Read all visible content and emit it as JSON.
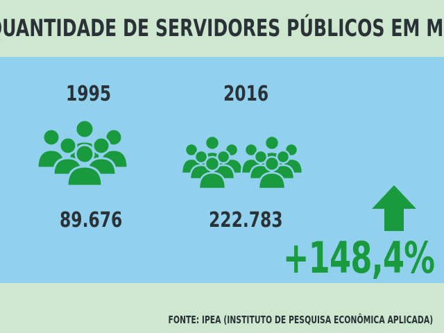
{
  "header": {
    "title": "QUANTIDADE DE SERVIDORES PÚBLICOS EM MS"
  },
  "col1995": {
    "year": "1995",
    "value": "89.676",
    "icon": "people-group-icon"
  },
  "col2016": {
    "year": "2016",
    "value": "222.783",
    "icon": "people-groups-icon"
  },
  "change": {
    "percent": "+148,4%",
    "icon": "arrow-up-icon"
  },
  "footer": {
    "source": "FONTE: IPEA (INSTITUTO DE PESQUISA ECONÔMICA APLICADA)"
  },
  "colors": {
    "green": "#1a9a3e",
    "sky": "#92d1ee",
    "mint": "#cde8cf",
    "text": "#2a3238"
  }
}
